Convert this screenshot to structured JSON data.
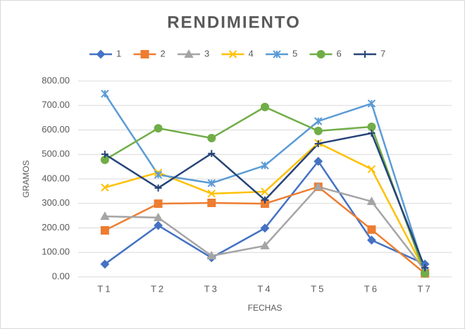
{
  "chart_data": {
    "type": "line",
    "title": "RENDIMIENTO",
    "x_label": "FECHAS",
    "y_label": "GRAMOS",
    "categories": [
      "T1",
      "T2",
      "T3",
      "T4",
      "T5",
      "T6",
      "T7"
    ],
    "series": [
      {
        "name": "1",
        "color": "#4472c4",
        "marker": "diamond",
        "values": [
          52,
          210,
          78,
          199,
          472,
          150,
          52
        ]
      },
      {
        "name": "2",
        "color": "#ed7d31",
        "marker": "square",
        "values": [
          190,
          299,
          302,
          299,
          368,
          193,
          14
        ]
      },
      {
        "name": "3",
        "color": "#a5a5a5",
        "marker": "triangle",
        "values": [
          247,
          242,
          86,
          127,
          368,
          308,
          26
        ]
      },
      {
        "name": "4",
        "color": "#ffc000",
        "marker": "x",
        "values": [
          365,
          426,
          340,
          348,
          547,
          440,
          23
        ]
      },
      {
        "name": "5",
        "color": "#5b9bd5",
        "marker": "asterisk",
        "values": [
          748,
          417,
          383,
          455,
          636,
          708,
          23
        ]
      },
      {
        "name": "6",
        "color": "#70ad47",
        "marker": "circle",
        "values": [
          478,
          607,
          567,
          694,
          596,
          613,
          14
        ]
      },
      {
        "name": "7",
        "color": "#264478",
        "marker": "plus",
        "values": [
          501,
          363,
          504,
          314,
          544,
          587,
          37
        ]
      }
    ],
    "ylim": [
      0,
      800
    ],
    "yticks": [
      {
        "value": 0,
        "label": "0.00"
      },
      {
        "value": 100,
        "label": "100.00"
      },
      {
        "value": 200,
        "label": "200.00"
      },
      {
        "value": 300,
        "label": "300.00"
      },
      {
        "value": 400,
        "label": "400.00"
      },
      {
        "value": 500,
        "label": "500.00"
      },
      {
        "value": 600,
        "label": "600.00"
      },
      {
        "value": 700,
        "label": "700.00"
      },
      {
        "value": 800,
        "label": "800.00"
      }
    ],
    "grid": true,
    "legend": "top"
  }
}
